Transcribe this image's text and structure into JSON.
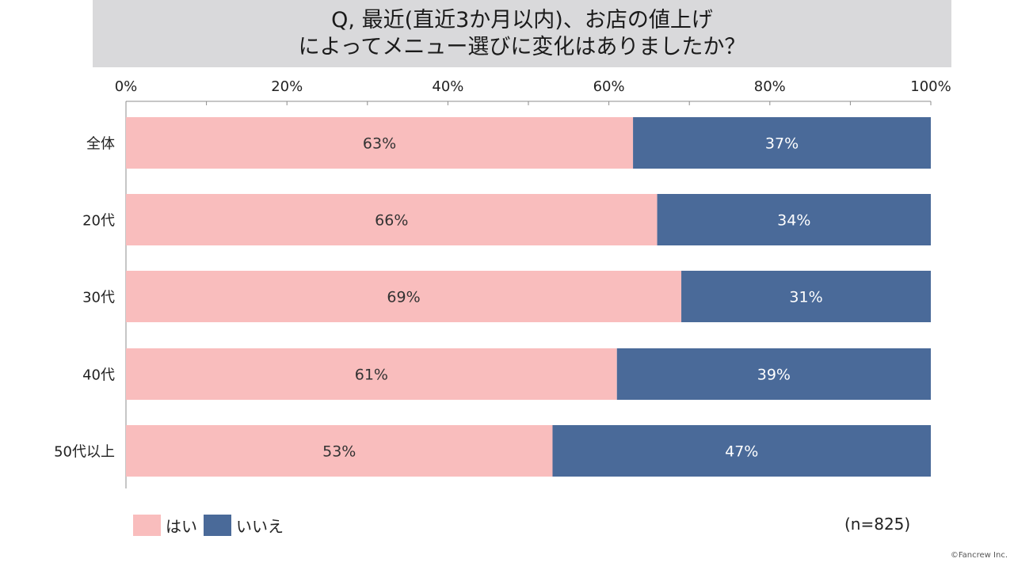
{
  "title": {
    "line1": "Q, 最近(直近3か月以内)、お店の値上げ",
    "line2": "によってメニュー選びに変化はありましたか？"
  },
  "chart_data": {
    "type": "bar",
    "orientation": "horizontal",
    "stacked": true,
    "percent_stacked": true,
    "categories": [
      "全体",
      "20代",
      "30代",
      "40代",
      "50代以上"
    ],
    "series": [
      {
        "name": "はい",
        "values": [
          63,
          66,
          69,
          61,
          53
        ],
        "color": "#f9bdbd",
        "label_color": "#333333"
      },
      {
        "name": "いいえ",
        "values": [
          37,
          34,
          31,
          39,
          47
        ],
        "color": "#4a6a99",
        "label_color": "#ffffff"
      }
    ],
    "data_labels": [
      [
        "63%",
        "66%",
        "69%",
        "61%",
        "53%"
      ],
      [
        "37%",
        "34%",
        "31%",
        "39%",
        "47%"
      ]
    ],
    "xlim": [
      0,
      100
    ],
    "xticks": [
      0,
      20,
      40,
      60,
      80,
      100
    ],
    "xtick_labels": [
      "0%",
      "20%",
      "40%",
      "60%",
      "80%",
      "100%"
    ],
    "axis_position": "top",
    "grid": false,
    "legend_position": "bottom-left"
  },
  "legend": {
    "items": [
      {
        "label": "はい",
        "color": "#f9bdbd"
      },
      {
        "label": "いいえ",
        "color": "#4a6a99"
      }
    ]
  },
  "sample_size": "(n=825)",
  "copyright": "©Fancrew Inc."
}
